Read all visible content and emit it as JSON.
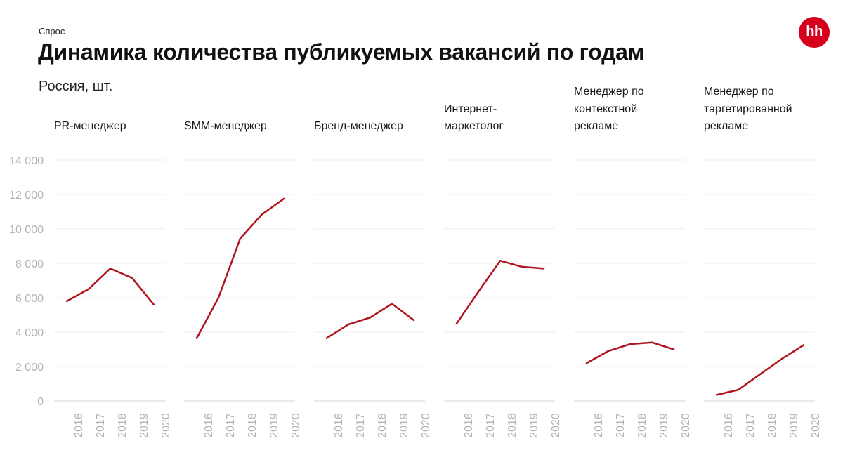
{
  "header": {
    "eyebrow": "Спрос",
    "title": "Динамика количества публикуемых вакансий по годам",
    "subtitle": "Россия, шт.",
    "logo_text": "hh"
  },
  "colors": {
    "line": "#b0141f",
    "grid": "#ececec",
    "tick": "#b3b3b3",
    "logo": "#d6001c"
  },
  "chart_data": {
    "type": "line",
    "ylim": [
      0,
      14000
    ],
    "y_ticks": [
      "0",
      "2 000",
      "4 000",
      "6 000",
      "8 000",
      "10 000",
      "12 000",
      "14 000"
    ],
    "y_tick_values": [
      0,
      2000,
      4000,
      6000,
      8000,
      10000,
      12000,
      14000
    ],
    "x": [
      "2016",
      "2017",
      "2018",
      "2019",
      "2020"
    ],
    "grid": true,
    "panels": [
      {
        "title": [
          "PR-менеджер"
        ],
        "values": [
          5800,
          6500,
          7700,
          7150,
          5600
        ]
      },
      {
        "title": [
          "SMM-менеджер"
        ],
        "values": [
          3650,
          6000,
          9450,
          10850,
          11750
        ]
      },
      {
        "title": [
          "Бренд-менеджер"
        ],
        "values": [
          3650,
          4450,
          4850,
          5650,
          4700
        ]
      },
      {
        "title": [
          "Интернет-",
          "маркетолог"
        ],
        "values": [
          4500,
          6350,
          8150,
          7800,
          7700
        ]
      },
      {
        "title": [
          "Менеджер по",
          "контекстной",
          "рекламе"
        ],
        "values": [
          2200,
          2900,
          3300,
          3400,
          3000
        ]
      },
      {
        "title": [
          "Менеджер по",
          "таргетированной",
          "рекламе"
        ],
        "values": [
          350,
          650,
          1550,
          2450,
          3250
        ]
      }
    ]
  }
}
